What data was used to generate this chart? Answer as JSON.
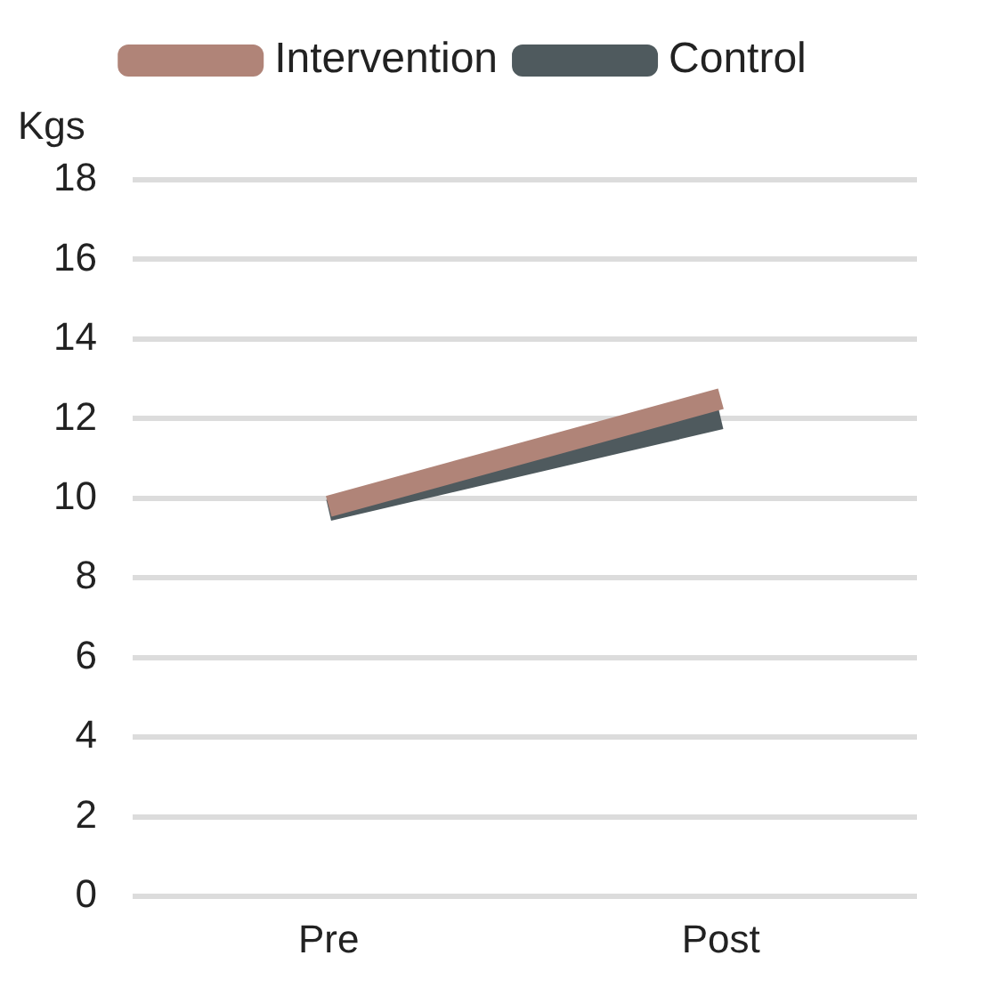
{
  "chart_data": {
    "type": "line",
    "ylabel": "Kgs",
    "categories": [
      "Pre",
      "Post"
    ],
    "series": [
      {
        "name": "Intervention",
        "color": "#b08478",
        "values": [
          9.8,
          12.5
        ]
      },
      {
        "name": "Control",
        "color": "#4f5a5e",
        "values": [
          9.7,
          12
        ]
      }
    ],
    "ylim": [
      0,
      18
    ],
    "yticks": [
      0,
      2,
      4,
      6,
      8,
      10,
      12,
      14,
      16,
      18
    ],
    "grid": "y",
    "legend": "top",
    "marker": "none",
    "line_style": "solid"
  }
}
